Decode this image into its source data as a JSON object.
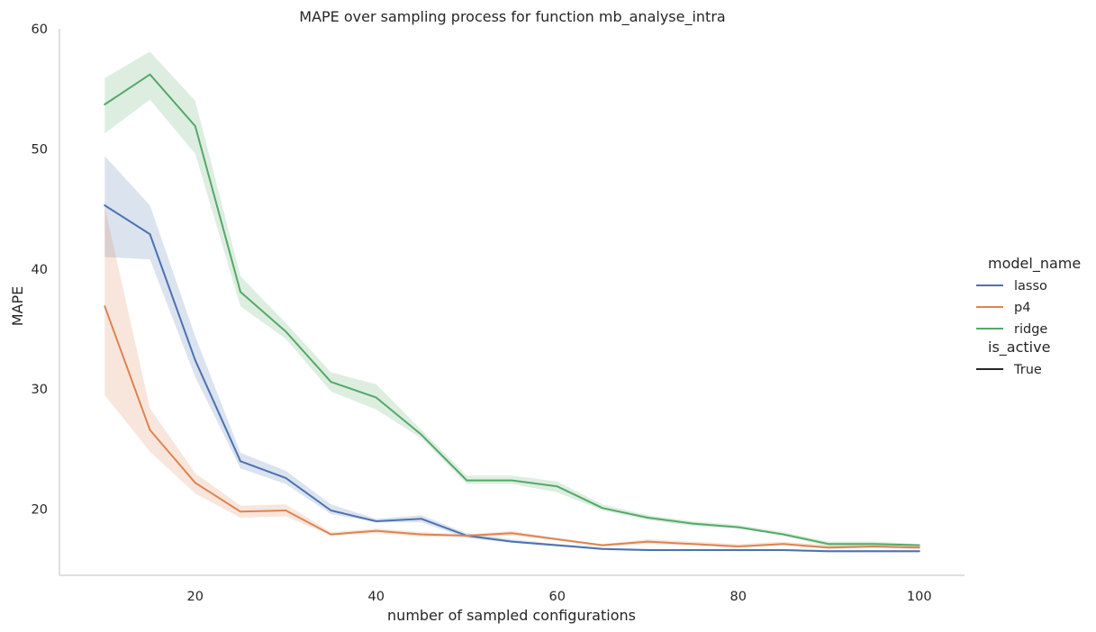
{
  "chart_data": {
    "type": "line",
    "title": "MAPE over sampling process for function mb_analyse_intra",
    "xlabel": "number of sampled configurations",
    "ylabel": "MAPE",
    "xlim": [
      5,
      105
    ],
    "ylim": [
      14.5,
      60
    ],
    "xticks": [
      20,
      40,
      60,
      80,
      100
    ],
    "yticks": [
      20,
      30,
      40,
      50,
      60
    ],
    "grid": false,
    "legend": {
      "placement": "right",
      "hue_title": "model_name",
      "style_title": "is_active",
      "style_entries": [
        {
          "label": "True",
          "color": "#262626"
        }
      ]
    },
    "x": [
      10,
      15,
      20,
      25,
      30,
      35,
      40,
      45,
      50,
      55,
      60,
      65,
      70,
      75,
      80,
      85,
      90,
      95,
      100
    ],
    "series": [
      {
        "name": "lasso",
        "color": "#4c72b0",
        "values": [
          45.3,
          42.9,
          32.4,
          24.0,
          22.6,
          19.9,
          19.0,
          19.2,
          17.8,
          17.3,
          17.0,
          16.7,
          16.6,
          16.6,
          16.6,
          16.6,
          16.5,
          16.5,
          16.5
        ],
        "lower": [
          41.0,
          40.8,
          31.0,
          23.4,
          22.1,
          19.6,
          18.9,
          18.9,
          17.6,
          17.2,
          16.9,
          16.6,
          16.5,
          16.5,
          16.5,
          16.5,
          16.4,
          16.4,
          16.4
        ],
        "upper": [
          49.4,
          45.3,
          34.4,
          24.7,
          23.2,
          20.4,
          19.2,
          19.5,
          18.0,
          17.5,
          17.1,
          16.8,
          16.7,
          16.7,
          16.7,
          16.7,
          16.6,
          16.6,
          16.6
        ]
      },
      {
        "name": "p4",
        "color": "#dd8452",
        "values": [
          36.9,
          26.6,
          22.2,
          19.8,
          19.9,
          17.9,
          18.2,
          17.9,
          17.8,
          18.0,
          17.5,
          17.0,
          17.3,
          17.1,
          16.9,
          17.1,
          16.8,
          16.9,
          16.8
        ],
        "lower": [
          29.5,
          24.8,
          21.3,
          19.3,
          19.4,
          17.8,
          18.0,
          17.7,
          17.7,
          17.8,
          17.4,
          16.9,
          17.1,
          17.0,
          16.8,
          17.0,
          16.7,
          16.8,
          16.7
        ],
        "upper": [
          45.2,
          28.4,
          23.0,
          20.3,
          20.4,
          18.1,
          18.4,
          18.1,
          17.9,
          18.2,
          17.6,
          17.1,
          17.5,
          17.3,
          17.1,
          17.3,
          17.0,
          17.0,
          16.9
        ]
      },
      {
        "name": "ridge",
        "color": "#55a868",
        "values": [
          53.7,
          56.2,
          51.9,
          38.1,
          34.8,
          30.6,
          29.3,
          26.2,
          22.4,
          22.4,
          21.9,
          20.1,
          19.3,
          18.8,
          18.5,
          17.9,
          17.1,
          17.1,
          17.0
        ],
        "lower": [
          51.3,
          54.1,
          49.6,
          36.9,
          34.2,
          29.8,
          28.3,
          25.9,
          22.1,
          22.1,
          21.4,
          19.9,
          19.1,
          18.6,
          18.4,
          17.8,
          16.9,
          16.9,
          16.8
        ],
        "upper": [
          55.9,
          58.1,
          54.0,
          39.4,
          35.5,
          31.4,
          30.4,
          26.6,
          22.8,
          22.8,
          22.3,
          20.4,
          19.5,
          19.0,
          18.7,
          18.1,
          17.3,
          17.3,
          17.1
        ]
      }
    ]
  }
}
